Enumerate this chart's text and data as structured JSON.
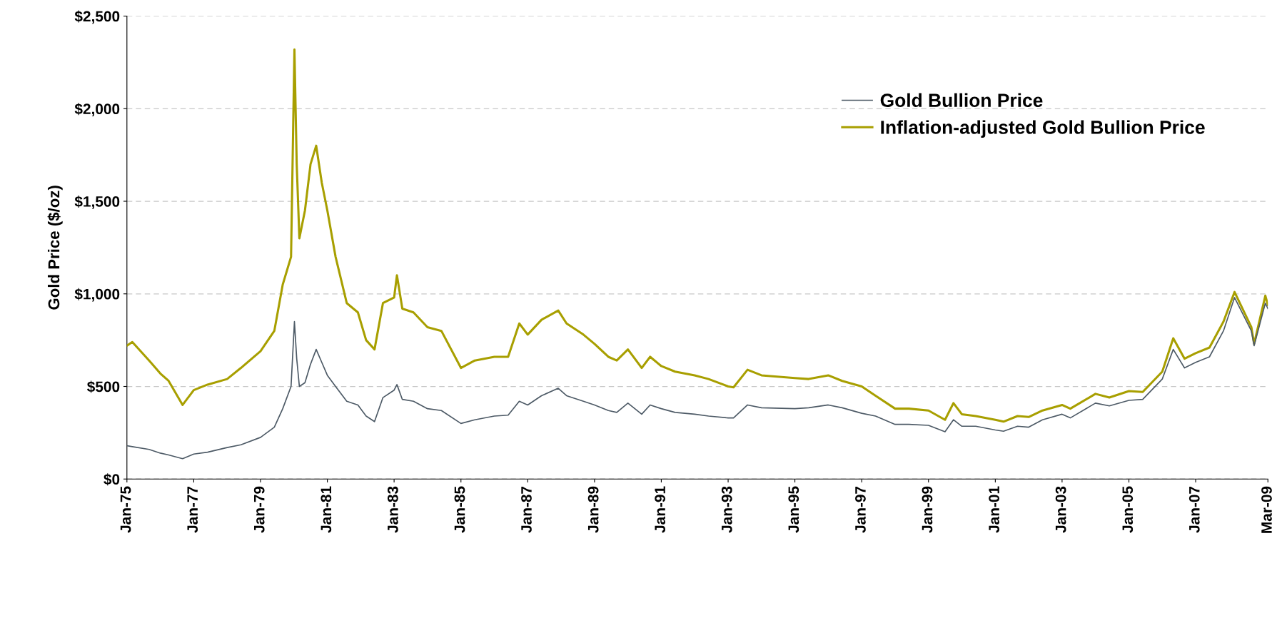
{
  "chart_data": {
    "type": "line",
    "ylabel": "Gold Price ($/oz)",
    "xlim": [
      "1975-01",
      "2009-03"
    ],
    "xticks": [
      {
        "value": "1975-01",
        "label": "Jan-75"
      },
      {
        "value": "1977-01",
        "label": "Jan-77"
      },
      {
        "value": "1979-01",
        "label": "Jan-79"
      },
      {
        "value": "1981-01",
        "label": "Jan-81"
      },
      {
        "value": "1983-01",
        "label": "Jan-83"
      },
      {
        "value": "1985-01",
        "label": "Jan-85"
      },
      {
        "value": "1987-01",
        "label": "Jan-87"
      },
      {
        "value": "1989-01",
        "label": "Jan-89"
      },
      {
        "value": "1991-01",
        "label": "Jan-91"
      },
      {
        "value": "1993-01",
        "label": "Jan-93"
      },
      {
        "value": "1995-01",
        "label": "Jan-95"
      },
      {
        "value": "1997-01",
        "label": "Jan-97"
      },
      {
        "value": "1999-01",
        "label": "Jan-99"
      },
      {
        "value": "2001-01",
        "label": "Jan-01"
      },
      {
        "value": "2003-01",
        "label": "Jan-03"
      },
      {
        "value": "2005-01",
        "label": "Jan-05"
      },
      {
        "value": "2007-01",
        "label": "Jan-07"
      },
      {
        "value": "2009-03",
        "label": "Mar-09"
      }
    ],
    "ylim": [
      0,
      2500
    ],
    "yticks": [
      {
        "value": 0,
        "label": "$0"
      },
      {
        "value": 500,
        "label": "$500"
      },
      {
        "value": 1000,
        "label": "$1,000"
      },
      {
        "value": 1500,
        "label": "$1,500"
      },
      {
        "value": 2000,
        "label": "$2,000"
      },
      {
        "value": 2500,
        "label": "$2,500"
      }
    ],
    "grid": "y",
    "legend": "top right",
    "marker": "none",
    "line_style": "solid",
    "x": [
      "1975-01",
      "1975-03",
      "1975-09",
      "1976-01",
      "1976-04",
      "1976-09",
      "1977-01",
      "1977-06",
      "1978-01",
      "1978-06",
      "1979-01",
      "1979-06",
      "1979-09",
      "1979-12",
      "1980-01-21",
      "1980-02",
      "1980-03",
      "1980-05",
      "1980-07",
      "1980-09",
      "1980-11",
      "1981-01",
      "1981-04",
      "1981-08",
      "1981-12",
      "1982-03",
      "1982-06",
      "1982-09",
      "1983-01",
      "1983-02",
      "1983-04",
      "1983-08",
      "1984-01",
      "1984-06",
      "1985-01",
      "1985-06",
      "1986-01",
      "1986-06",
      "1986-10",
      "1987-01",
      "1987-06",
      "1987-12",
      "1988-03",
      "1988-09",
      "1989-01",
      "1989-06",
      "1989-09",
      "1990-01",
      "1990-06",
      "1990-09",
      "1991-01",
      "1991-06",
      "1992-01",
      "1992-06",
      "1993-01",
      "1993-03",
      "1993-08",
      "1994-01",
      "1995-01",
      "1995-06",
      "1996-01",
      "1996-06",
      "1997-01",
      "1997-06",
      "1998-01",
      "1998-06",
      "1999-01",
      "1999-07",
      "1999-10",
      "2000-01",
      "2000-06",
      "2001-01",
      "2001-04",
      "2001-09",
      "2002-01",
      "2002-06",
      "2003-01",
      "2003-04",
      "2004-01",
      "2004-06",
      "2005-01",
      "2005-06",
      "2006-01",
      "2006-05",
      "2006-09",
      "2007-01",
      "2007-06",
      "2007-11",
      "2008-03",
      "2008-09",
      "2008-10",
      "2009-02",
      "2009-03"
    ],
    "series": [
      {
        "name": "Gold Bullion Price",
        "color": "#4d5a66",
        "values": [
          180,
          175,
          160,
          140,
          130,
          110,
          135,
          145,
          170,
          185,
          225,
          280,
          380,
          500,
          850,
          650,
          500,
          520,
          620,
          700,
          630,
          560,
          500,
          420,
          400,
          340,
          310,
          440,
          480,
          510,
          430,
          420,
          380,
          370,
          300,
          320,
          340,
          345,
          420,
          400,
          450,
          490,
          450,
          420,
          400,
          370,
          360,
          410,
          350,
          400,
          380,
          360,
          350,
          340,
          330,
          330,
          400,
          385,
          380,
          385,
          400,
          385,
          355,
          340,
          295,
          295,
          290,
          255,
          320,
          285,
          285,
          265,
          258,
          285,
          280,
          320,
          350,
          330,
          410,
          395,
          425,
          430,
          540,
          700,
          600,
          630,
          660,
          800,
          980,
          800,
          720,
          950,
          920
        ]
      },
      {
        "name": "Inflation-adjusted Gold Bullion Price",
        "color": "#a89f00",
        "values": [
          720,
          740,
          640,
          570,
          530,
          400,
          480,
          510,
          540,
          600,
          690,
          800,
          1050,
          1200,
          2320,
          1700,
          1300,
          1450,
          1700,
          1800,
          1600,
          1450,
          1200,
          950,
          900,
          750,
          700,
          950,
          980,
          1100,
          920,
          900,
          820,
          800,
          600,
          640,
          660,
          660,
          840,
          780,
          860,
          910,
          840,
          780,
          730,
          660,
          640,
          700,
          600,
          660,
          610,
          580,
          560,
          540,
          500,
          495,
          590,
          560,
          545,
          540,
          560,
          530,
          500,
          450,
          380,
          380,
          370,
          320,
          410,
          350,
          340,
          320,
          310,
          340,
          335,
          370,
          400,
          380,
          460,
          440,
          475,
          470,
          580,
          760,
          650,
          680,
          710,
          850,
          1010,
          820,
          730,
          990,
          940
        ]
      }
    ]
  }
}
